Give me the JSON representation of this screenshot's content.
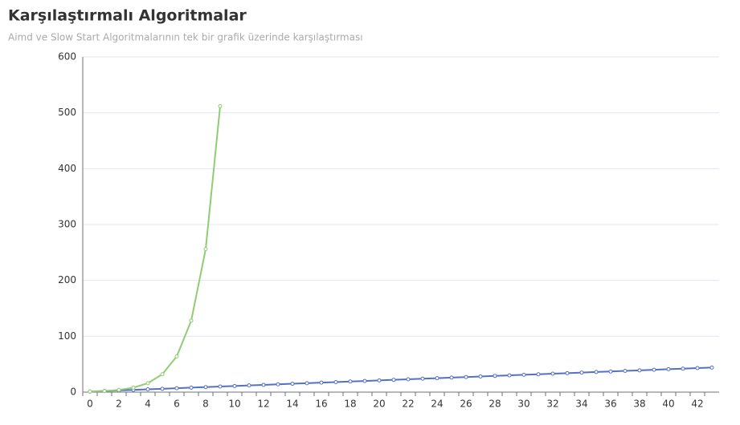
{
  "chart_data": {
    "type": "line",
    "title": "Karşılaştırmalı Algoritmalar",
    "subtitle": "Aimd ve Slow Start Algoritmalarının tek bir grafik üzerinde karşılaştırması",
    "categories": [
      "0",
      null,
      "2",
      null,
      "4",
      null,
      "6",
      null,
      "8",
      null,
      "10",
      null,
      "12",
      null,
      "14",
      null,
      "16",
      null,
      "18",
      null,
      "20",
      null,
      "22",
      null,
      "24",
      null,
      "26",
      null,
      "28",
      null,
      "30",
      null,
      "32",
      null,
      "34",
      null,
      "36",
      null,
      "38",
      null,
      "40",
      null,
      "42",
      null
    ],
    "series": [
      {
        "color": "#5470c6",
        "values": [
          1,
          2,
          3,
          4,
          5,
          6,
          7,
          8,
          9,
          10,
          11,
          12,
          13,
          14,
          15,
          16,
          17,
          18,
          19,
          20,
          21,
          22,
          23,
          24,
          25,
          26,
          27,
          28,
          29,
          30,
          31,
          32,
          33,
          34,
          35,
          36,
          37,
          38,
          39,
          40,
          41,
          42,
          43,
          44
        ]
      },
      {
        "color": "#91cc75",
        "values": [
          1,
          2,
          4,
          8,
          16,
          32,
          64,
          128,
          256,
          512,
          null,
          null,
          null,
          null,
          null,
          null,
          null,
          null,
          null,
          null,
          null,
          null,
          null,
          null,
          null,
          null,
          null,
          null,
          null,
          null,
          null,
          null,
          null,
          null,
          null,
          null,
          null,
          null,
          null,
          null,
          null,
          null,
          null,
          null
        ]
      }
    ],
    "ylim": [
      0,
      600
    ],
    "yticks": [
      0,
      100,
      200,
      300,
      400,
      500,
      600
    ],
    "grid": true
  }
}
